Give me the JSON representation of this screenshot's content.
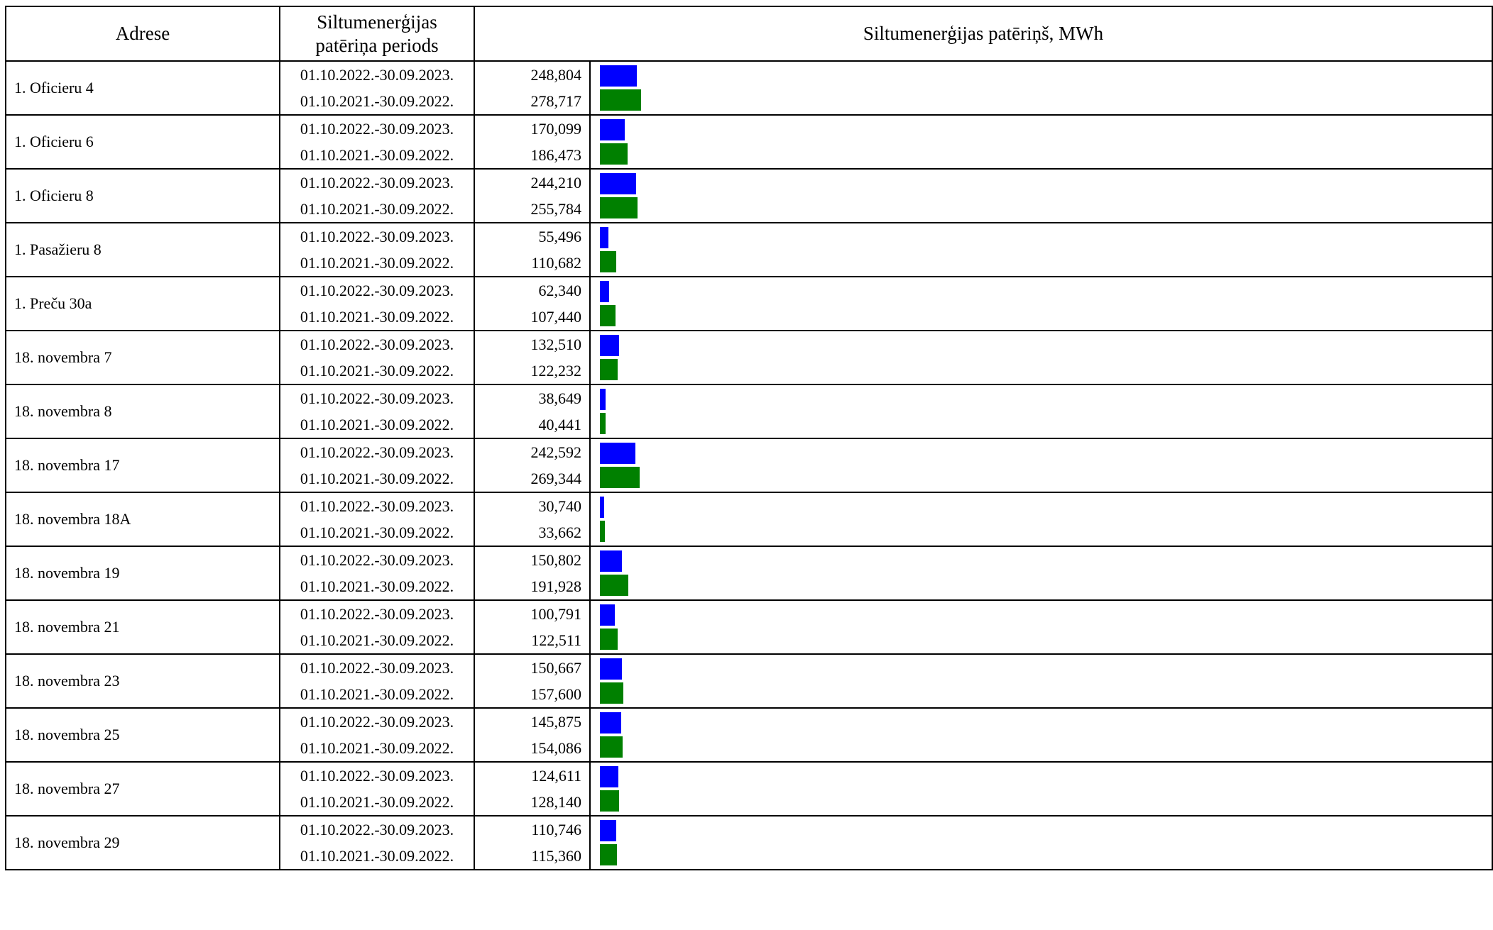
{
  "header": {
    "address": "Adrese",
    "period_line1": "Siltumenerģijas",
    "period_line2": "patēriņa periods",
    "consumption": "Siltumenerģijas patēriņš, MWh"
  },
  "colors": {
    "current": "#0000ff",
    "previous": "#008000"
  },
  "chart_data": {
    "type": "bar",
    "orientation": "horizontal",
    "title": "Siltumenerģijas patēriņš, MWh",
    "categories": [
      "1. Oficieru 4",
      "1. Oficieru 6",
      "1. Oficieru 8",
      "1. Pasažieru 8",
      "1. Preču 30a",
      "18. novembra 7",
      "18. novembra 8",
      "18. novembra 17",
      "18. novembra 18A",
      "18. novembra 19",
      "18. novembra 21",
      "18. novembra 23",
      "18. novembra 25",
      "18. novembra 27",
      "18. novembra 29"
    ],
    "max_value": 1500,
    "series": [
      {
        "name": "01.10.2022.-30.09.2023.",
        "color": "#0000ff",
        "values": [
          248.804,
          170.099,
          244.21,
          55.496,
          62.34,
          132.51,
          38.649,
          242.592,
          30.74,
          150.802,
          100.791,
          150.667,
          145.875,
          124.611,
          110.746
        ],
        "labels": [
          "248,804",
          "170,099",
          "244,210",
          "55,496",
          "62,340",
          "132,510",
          "38,649",
          "242,592",
          "30,740",
          "150,802",
          "100,791",
          "150,667",
          "145,875",
          "124,611",
          "110,746"
        ]
      },
      {
        "name": "01.10.2021.-30.09.2022.",
        "color": "#008000",
        "values": [
          278.717,
          186.473,
          255.784,
          110.682,
          107.44,
          122.232,
          40.441,
          269.344,
          33.662,
          191.928,
          122.511,
          157.6,
          154.086,
          128.14,
          115.36
        ],
        "labels": [
          "278,717",
          "186,473",
          "255,784",
          "110,682",
          "107,440",
          "122,232",
          "40,441",
          "269,344",
          "33,662",
          "191,928",
          "122,511",
          "157,600",
          "154,086",
          "128,140",
          "115,360"
        ]
      }
    ]
  }
}
